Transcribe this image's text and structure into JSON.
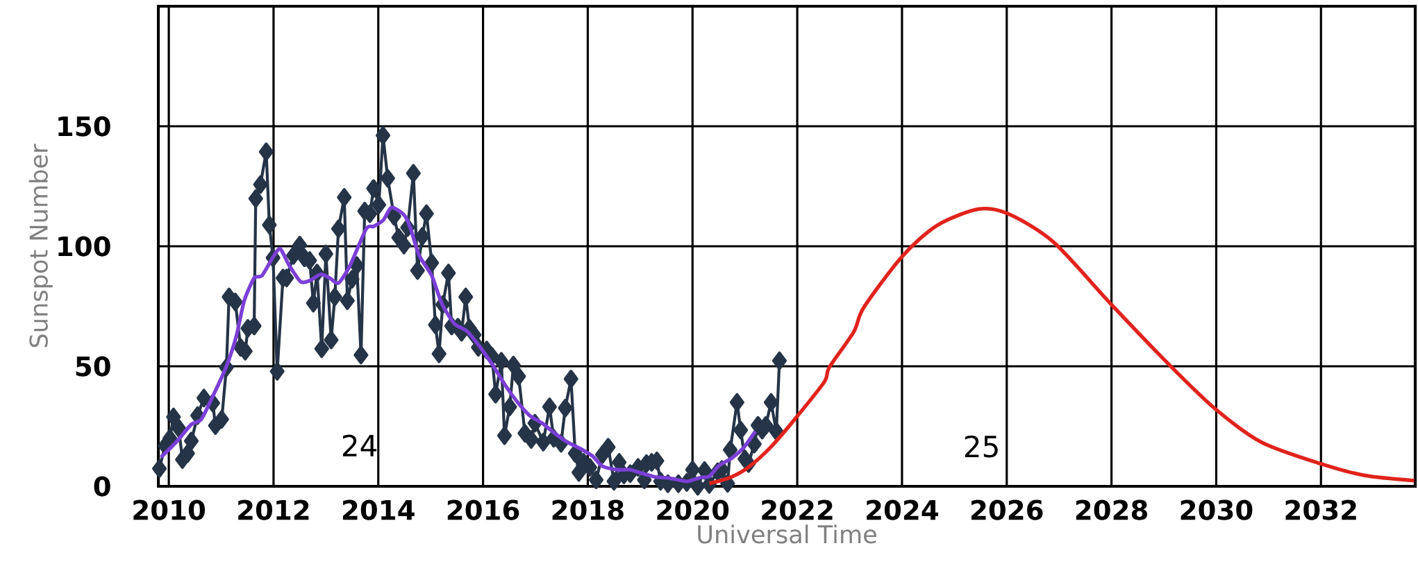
{
  "chart_data": {
    "type": "line",
    "xlabel": "Universal Time",
    "ylabel": "Sunspot Number",
    "xlim": [
      2009.8,
      2033.8
    ],
    "ylim": [
      0,
      200
    ],
    "xticks": [
      2010,
      2012,
      2014,
      2016,
      2018,
      2020,
      2022,
      2024,
      2026,
      2028,
      2030,
      2032
    ],
    "yticks": [
      0,
      50,
      100,
      150
    ],
    "grid": true,
    "annotations": [
      "24",
      "25"
    ],
    "series": [
      {
        "color": "#253447",
        "marker": "diamond",
        "x": [
          2009.82,
          2009.93,
          2010.02,
          2010.09,
          2010.19,
          2010.26,
          2010.36,
          2010.43,
          2010.55,
          2010.67,
          2010.84,
          2010.89,
          2011.01,
          2011.1,
          2011.15,
          2011.27,
          2011.37,
          2011.46,
          2011.51,
          2011.63,
          2011.66,
          2011.75,
          2011.86,
          2011.92,
          2011.99,
          2012.07,
          2012.18,
          2012.25,
          2012.38,
          2012.5,
          2012.59,
          2012.69,
          2012.76,
          2012.83,
          2012.92,
          2013.0,
          2013.1,
          2013.17,
          2013.24,
          2013.35,
          2013.41,
          2013.5,
          2013.59,
          2013.67,
          2013.74,
          2013.84,
          2013.91,
          2014.01,
          2014.09,
          2014.18,
          2014.3,
          2014.39,
          2014.49,
          2014.56,
          2014.67,
          2014.75,
          2014.84,
          2014.92,
          2015.02,
          2015.09,
          2015.16,
          2015.23,
          2015.34,
          2015.4,
          2015.52,
          2015.59,
          2015.67,
          2015.74,
          2015.83,
          2015.91,
          2016.07,
          2016.17,
          2016.24,
          2016.35,
          2016.41,
          2016.51,
          2016.58,
          2016.68,
          2016.8,
          2016.92,
          2016.99,
          2017.15,
          2017.27,
          2017.35,
          2017.49,
          2017.57,
          2017.68,
          2017.76,
          2017.83,
          2017.92,
          2018.04,
          2018.16,
          2018.28,
          2018.39,
          2018.5,
          2018.6,
          2018.69,
          2018.81,
          2018.96,
          2019.08,
          2019.12,
          2019.22,
          2019.32,
          2019.39,
          2019.53,
          2019.73,
          2019.89,
          2020.0,
          2020.1,
          2020.23,
          2020.32,
          2020.48,
          2020.56,
          2020.67,
          2020.72,
          2020.85,
          2020.92,
          2021.0,
          2021.07,
          2021.18,
          2021.25,
          2021.33,
          2021.4,
          2021.5,
          2021.6,
          2021.66
        ],
        "values": [
          7.4,
          16.9,
          20.0,
          28.9,
          24.2,
          11.1,
          13.7,
          18.9,
          29.5,
          36.8,
          34.7,
          25.3,
          27.9,
          49.5,
          78.9,
          76.8,
          57.9,
          56.3,
          65.8,
          66.8,
          119.9,
          125.7,
          139.4,
          108.9,
          95.2,
          47.9,
          86.8,
          86.8,
          96.2,
          100.5,
          95.2,
          94.1,
          76.3,
          88.9,
          57.3,
          96.8,
          61.0,
          78.9,
          107.3,
          120.4,
          77.3,
          86.3,
          92.0,
          54.7,
          114.7,
          113.6,
          124.1,
          117.3,
          146.2,
          128.3,
          112.5,
          103.6,
          100.5,
          107.8,
          130.4,
          89.9,
          104.1,
          113.6,
          93.1,
          67.3,
          55.2,
          75.7,
          88.9,
          66.8,
          66.3,
          64.2,
          78.9,
          65.8,
          63.1,
          57.9,
          56.8,
          54.2,
          38.4,
          52.1,
          21.1,
          33.1,
          50.5,
          45.8,
          22.1,
          19.5,
          26.3,
          18.4,
          33.1,
          20.0,
          17.9,
          32.6,
          44.7,
          13.7,
          5.8,
          10.0,
          7.9,
          2.7,
          13.2,
          16.3,
          2.1,
          10.0,
          4.8,
          5.3,
          7.9,
          2.7,
          9.5,
          10.0,
          10.6,
          2.1,
          1.1,
          1.1,
          1.6,
          6.9,
          0.0,
          6.6,
          0.8,
          6.1,
          7.0,
          1.2,
          15.2,
          35.0,
          23.4,
          11.4,
          9.5,
          17.6,
          25.4,
          23.4,
          25.4,
          35.0,
          22.9,
          52.3
        ]
      },
      {
        "color": "#7b3fd6",
        "marker": "none",
        "x": [
          2009.85,
          2010.14,
          2010.43,
          2010.62,
          2010.86,
          2011.1,
          2011.29,
          2011.44,
          2011.63,
          2011.78,
          2012.01,
          2012.13,
          2012.3,
          2012.52,
          2012.69,
          2012.9,
          2013.07,
          2013.24,
          2013.46,
          2013.77,
          2013.91,
          2014.1,
          2014.25,
          2014.49,
          2014.61,
          2014.78,
          2015.02,
          2015.21,
          2015.45,
          2015.69,
          2015.93,
          2016.17,
          2016.41,
          2016.65,
          2016.89,
          2017.13,
          2017.37,
          2017.61,
          2017.85,
          2018.09,
          2018.28,
          2018.57,
          2018.81,
          2019.05,
          2019.29,
          2019.53,
          2019.77,
          2019.92,
          2020.16,
          2020.32,
          2020.5,
          2020.76,
          2020.98,
          2021.2
        ],
        "values": [
          12.1,
          18.4,
          25.8,
          27.9,
          38.4,
          50.0,
          62.6,
          77.3,
          86.8,
          87.8,
          96.2,
          98.9,
          92.0,
          85.2,
          85.7,
          88.3,
          86.8,
          84.7,
          92.0,
          107.3,
          108.3,
          111.0,
          116.2,
          113.1,
          107.8,
          96.2,
          87.8,
          76.3,
          67.8,
          64.7,
          58.4,
          51.0,
          42.6,
          35.3,
          29.5,
          26.3,
          22.1,
          18.4,
          15.8,
          12.6,
          8.4,
          6.9,
          6.9,
          5.3,
          3.9,
          3.5,
          2.5,
          2.1,
          3.7,
          4.1,
          8.5,
          11.9,
          16.2,
          22.9
        ]
      },
      {
        "color": "#e0231c",
        "marker": "none",
        "x": [
          2020.32,
          2020.72,
          2021.07,
          2021.51,
          2022.0,
          2022.52,
          2022.61,
          2023.08,
          2023.27,
          2024.0,
          2024.67,
          2025.46,
          2026.02,
          2026.89,
          2028.0,
          2029.11,
          2029.98,
          2030.86,
          2032.01,
          2032.84,
          2033.78
        ],
        "values": [
          1.2,
          3.7,
          8.0,
          16.7,
          29.2,
          43.6,
          49.5,
          64.4,
          74.5,
          95.7,
          108.7,
          115.5,
          113.6,
          101.8,
          75.7,
          50.5,
          32.3,
          18.4,
          9.3,
          4.5,
          2.4
        ]
      }
    ]
  }
}
